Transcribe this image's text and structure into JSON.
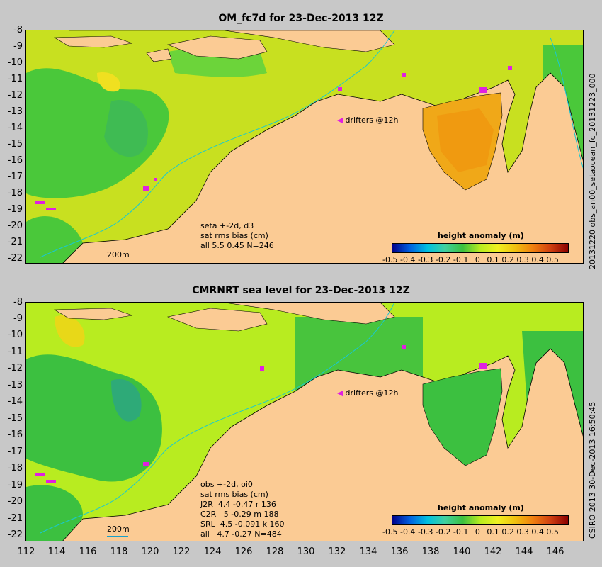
{
  "top": {
    "title": "OM_fc7d for 23-Dec-2013 12Z",
    "side_label_right": "ocean_fc_20131223_000",
    "side_label_right_lower": "20131220 obs_an00_seta",
    "drifters_label": "drifters @12h",
    "info": "seta +-2d, d3\nsat rms bias (cm)\nall 5.5 0.45 N=246",
    "scale_label": "200m",
    "colorbar_title": "height anomaly (m)"
  },
  "bottom": {
    "title": "CMRNRT sea level  for 23-Dec-2013 12Z",
    "side_label_right": "CSIRO 2013  30-Dec-2013 16:50:45",
    "drifters_label": "drifters @12h",
    "info": "obs +-2d, oi0\nsat rms bias (cm)\nJ2R  4.4 -0.47 r 136\nC2R   5 -0.29 m 188\nSRL  4.5 -0.091 k 160\nall   4.7 -0.27 N=484",
    "scale_label": "200m",
    "colorbar_title": "height anomaly (m)"
  },
  "axes": {
    "y_ticks": [
      "-8",
      "-9",
      "-10",
      "-11",
      "-12",
      "-13",
      "-14",
      "-15",
      "-16",
      "-17",
      "-18",
      "-19",
      "-20",
      "-21",
      "-22"
    ],
    "x_ticks": [
      "112",
      "114",
      "116",
      "118",
      "120",
      "122",
      "124",
      "126",
      "128",
      "130",
      "132",
      "134",
      "136",
      "138",
      "140",
      "142",
      "144",
      "146"
    ],
    "colorbar_ticks": [
      "-0.5",
      "-0.4",
      "-0.3",
      "-0.2",
      "-0.1",
      "0",
      "0.1",
      "0.2",
      "0.3",
      "0.4",
      "0.5"
    ]
  },
  "colors": {
    "land": "#fbcb94",
    "deep_blue": "#00008b",
    "green": "#3cc040",
    "yellow_green": "#b8ec20",
    "yellow": "#f0f020",
    "orange": "#f0a010",
    "dark_red": "#8b0000",
    "contour": "#19c8d2",
    "drifter": "#e020e0"
  }
}
